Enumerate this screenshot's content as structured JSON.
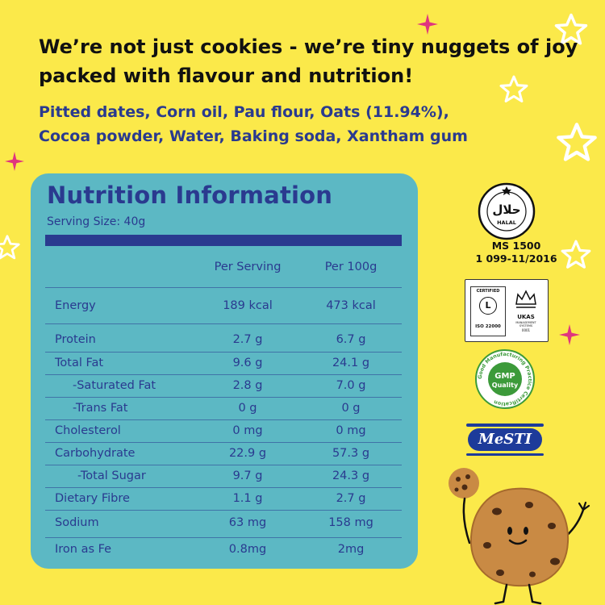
{
  "headline": {
    "line1": "We’re not just cookies - we’re tiny nuggets of joy",
    "line2": "packed with flavour and nutrition!"
  },
  "ingredients": {
    "line1": "Pitted dates, Corn oil, Pau flour, Oats (11.94%),",
    "line2": "Cocoa powder, Water, Baking soda, Xantham gum"
  },
  "nutrition": {
    "title": "Nutrition Information",
    "serving_size": "Serving Size: 40g",
    "col_per_serving": "Per Serving",
    "col_per_100g": "Per 100g",
    "rows": [
      {
        "label": "Energy",
        "per_serving": "189 kcal",
        "per_100g": "473 kcal"
      },
      {
        "label": "Protein",
        "per_serving": "2.7 g",
        "per_100g": "6.7 g"
      },
      {
        "label": "Total Fat",
        "per_serving": "9.6 g",
        "per_100g": "24.1 g"
      },
      {
        "label": "-Saturated Fat",
        "per_serving": "2.8 g",
        "per_100g": "7.0 g"
      },
      {
        "label": "-Trans Fat",
        "per_serving": "0 g",
        "per_100g": "0 g"
      },
      {
        "label": "Cholesterol",
        "per_serving": "0 mg",
        "per_100g": "0 mg"
      },
      {
        "label": "Carbohydrate",
        "per_serving": "22.9 g",
        "per_100g": "57.3 g"
      },
      {
        "label": "-Total Sugar",
        "per_serving": "9.7 g",
        "per_100g": "24.3 g"
      },
      {
        "label": "Dietary Fibre",
        "per_serving": "1.1 g",
        "per_100g": "2.7 g"
      },
      {
        "label": "Sodium",
        "per_serving": "63 mg",
        "per_100g": "158 mg"
      },
      {
        "label": "Iron as Fe",
        "per_serving": "0.8mg",
        "per_100g": "2mg"
      }
    ]
  },
  "certifications": {
    "halal_arabic": "حلال",
    "halal_latin": "HALAL",
    "halal_standard_line1": "MS 1500",
    "halal_standard_line2": "1 099-11/2016",
    "lr_certified": "CERTIFIED",
    "lr_standard": "ISO 22000",
    "ukas_label": "UKAS",
    "ukas_sub": "MANAGEMENT SYSTEMS",
    "ukas_number": "0001",
    "gmp_label": "GMP",
    "gmp_sub": "Quality",
    "gmp_ring": "Good Manufacturing Practice Certification",
    "mesti_label": "MeSTI"
  },
  "colors": {
    "background": "#fbe94a",
    "panel": "#5cb8c4",
    "navy": "#2a3a8f",
    "pink_star": "#e0357e",
    "gmp_green": "#3c9a3a"
  }
}
